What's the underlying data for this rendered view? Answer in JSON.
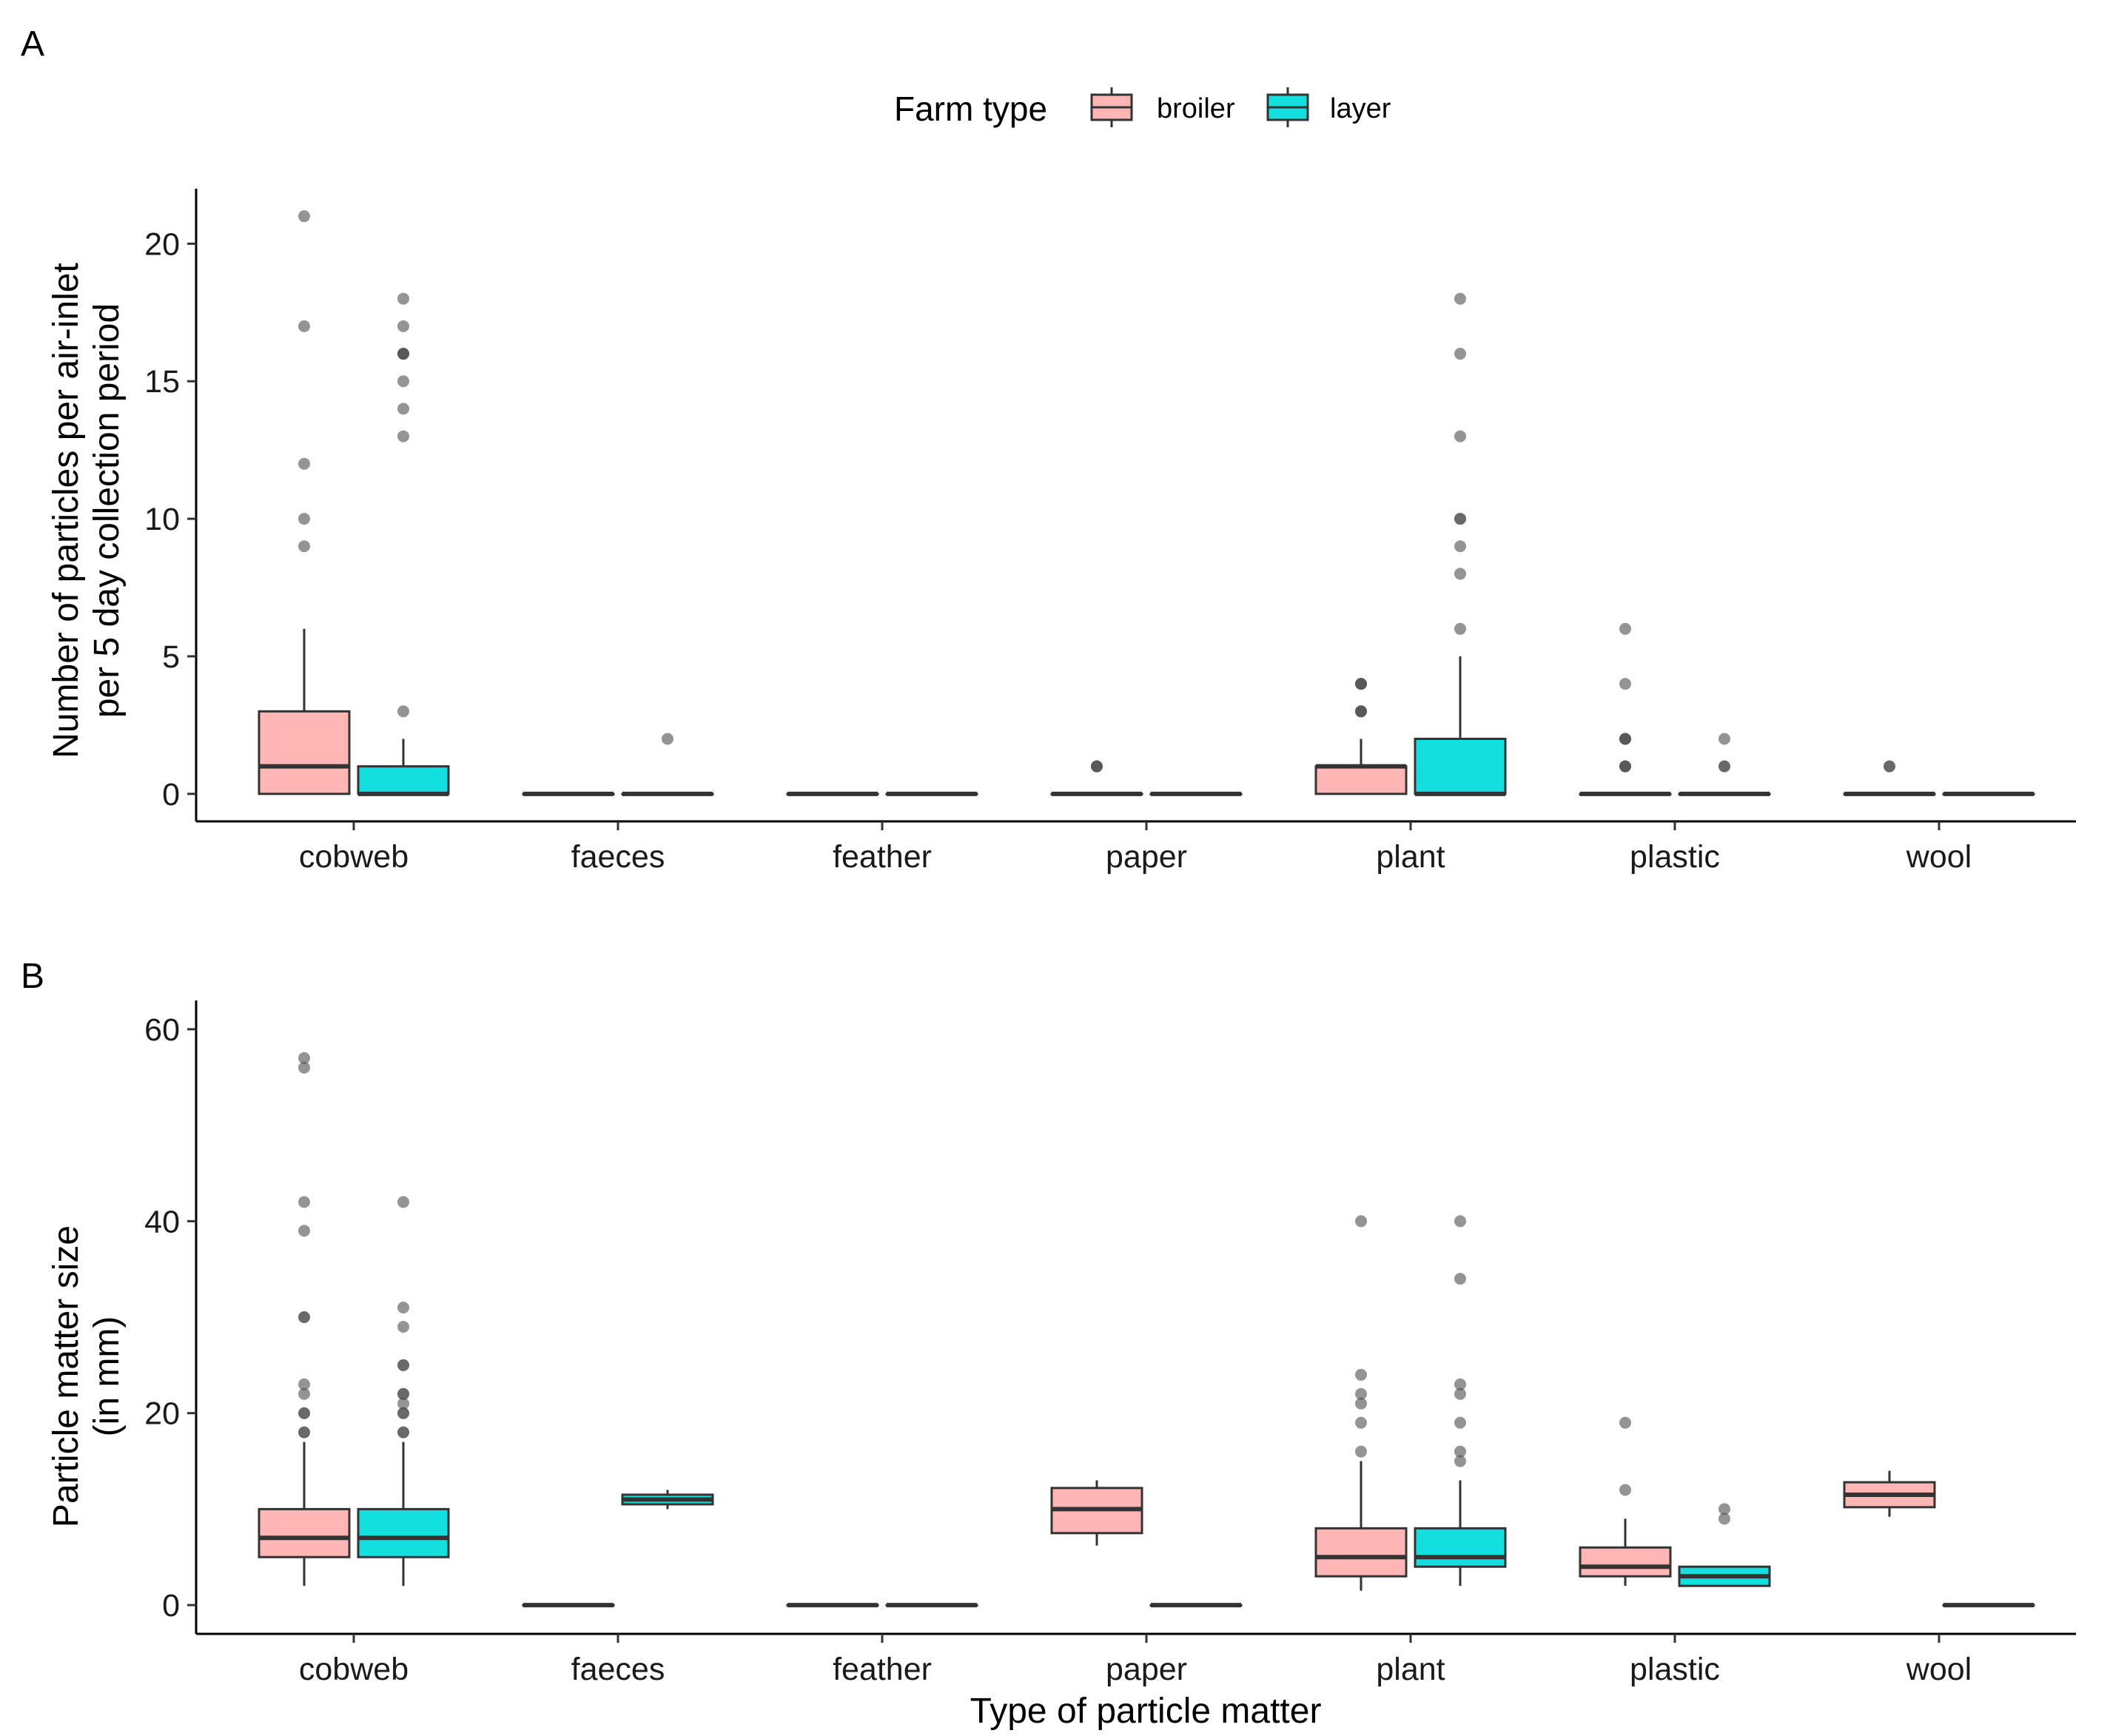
{
  "legend": {
    "title": "Farm type",
    "entries": [
      {
        "name": "broiler",
        "color": "#FFB6B4"
      },
      {
        "name": "layer",
        "color": "#14DFDF"
      }
    ]
  },
  "style": {
    "box_stroke": "#333333",
    "axis_color": "#000000",
    "outlier_color": "#4d4d4d"
  },
  "chart_data": [
    {
      "panel": "A",
      "type": "boxplot",
      "xlabel": "",
      "ylabel_lines": [
        "Number of particles per air-inlet",
        "per 5 day collection period"
      ],
      "ylim": [
        -1,
        22
      ],
      "yticks": [
        0,
        5,
        10,
        15,
        20
      ],
      "categories": [
        "cobweb",
        "faeces",
        "feather",
        "paper",
        "plant",
        "plastic",
        "wool"
      ],
      "series": [
        {
          "name": "broiler",
          "boxes": [
            {
              "q1": 0,
              "median": 1,
              "q3": 3,
              "whisker_low": 0,
              "whisker_high": 6,
              "outliers": [
                9,
                10,
                12,
                17,
                21
              ]
            },
            {
              "q1": 0,
              "median": 0,
              "q3": 0,
              "whisker_low": 0,
              "whisker_high": 0,
              "outliers": []
            },
            {
              "q1": 0,
              "median": 0,
              "q3": 0,
              "whisker_low": 0,
              "whisker_high": 0,
              "outliers": []
            },
            {
              "q1": 0,
              "median": 0,
              "q3": 0,
              "whisker_low": 0,
              "whisker_high": 0,
              "outliers": [
                1,
                1,
                1
              ]
            },
            {
              "q1": 0,
              "median": 1,
              "q3": 1,
              "whisker_low": 0,
              "whisker_high": 2,
              "outliers": [
                3,
                3,
                3,
                4,
                4,
                4
              ]
            },
            {
              "q1": 0,
              "median": 0,
              "q3": 0,
              "whisker_low": 0,
              "whisker_high": 0,
              "outliers": [
                1,
                1,
                1,
                2,
                2,
                2,
                4,
                6
              ]
            },
            {
              "q1": 0,
              "median": 0,
              "q3": 0,
              "whisker_low": 0,
              "whisker_high": 0,
              "outliers": [
                1,
                1
              ]
            }
          ]
        },
        {
          "name": "layer",
          "boxes": [
            {
              "q1": 0,
              "median": 0,
              "q3": 1,
              "whisker_low": 0,
              "whisker_high": 2,
              "outliers": [
                3,
                13,
                14,
                15,
                16,
                16,
                16,
                17,
                18
              ]
            },
            {
              "q1": 0,
              "median": 0,
              "q3": 0,
              "whisker_low": 0,
              "whisker_high": 0,
              "outliers": [
                2
              ]
            },
            {
              "q1": 0,
              "median": 0,
              "q3": 0,
              "whisker_low": 0,
              "whisker_high": 0,
              "outliers": []
            },
            {
              "q1": 0,
              "median": 0,
              "q3": 0,
              "whisker_low": 0,
              "whisker_high": 0,
              "outliers": []
            },
            {
              "q1": 0,
              "median": 0,
              "q3": 2,
              "whisker_low": 0,
              "whisker_high": 5,
              "outliers": [
                6,
                8,
                9,
                10,
                10,
                13,
                16,
                18
              ]
            },
            {
              "q1": 0,
              "median": 0,
              "q3": 0,
              "whisker_low": 0,
              "whisker_high": 0,
              "outliers": [
                1,
                1,
                2
              ]
            },
            {
              "q1": 0,
              "median": 0,
              "q3": 0,
              "whisker_low": 0,
              "whisker_high": 0,
              "outliers": []
            }
          ]
        }
      ]
    },
    {
      "panel": "B",
      "type": "boxplot",
      "xlabel": "Type of particle matter",
      "ylabel_lines": [
        "Particle matter size",
        "(in mm)"
      ],
      "ylim": [
        -3,
        63
      ],
      "yticks": [
        0,
        20,
        40,
        60
      ],
      "categories": [
        "cobweb",
        "faeces",
        "feather",
        "paper",
        "plant",
        "plastic",
        "wool"
      ],
      "series": [
        {
          "name": "broiler",
          "boxes": [
            {
              "q1": 5,
              "median": 7,
              "q3": 10,
              "whisker_low": 2,
              "whisker_high": 17,
              "outliers": [
                18,
                18,
                20,
                20,
                22,
                23,
                30,
                30,
                39,
                42,
                56,
                57
              ]
            },
            {
              "q1": 0,
              "median": 0,
              "q3": 0,
              "whisker_low": 0,
              "whisker_high": 0,
              "outliers": []
            },
            {
              "q1": 0,
              "median": 0,
              "q3": 0,
              "whisker_low": 0,
              "whisker_high": 0,
              "outliers": []
            },
            {
              "q1": 7.5,
              "median": 10,
              "q3": 12.2,
              "whisker_low": 6.2,
              "whisker_high": 13,
              "outliers": []
            },
            {
              "q1": 3,
              "median": 5,
              "q3": 8,
              "whisker_low": 1.5,
              "whisker_high": 15,
              "outliers": [
                16,
                19,
                21,
                22,
                24,
                40
              ]
            },
            {
              "q1": 3,
              "median": 4,
              "q3": 6,
              "whisker_low": 2,
              "whisker_high": 9,
              "outliers": [
                12,
                19
              ]
            },
            {
              "q1": 10.2,
              "median": 11.5,
              "q3": 12.8,
              "whisker_low": 9.2,
              "whisker_high": 14,
              "outliers": []
            }
          ]
        },
        {
          "name": "layer",
          "boxes": [
            {
              "q1": 5,
              "median": 7,
              "q3": 10,
              "whisker_low": 2,
              "whisker_high": 17,
              "outliers": [
                18,
                18,
                20,
                20,
                21,
                22,
                22,
                25,
                25,
                29,
                31,
                42
              ]
            },
            {
              "q1": 10.5,
              "median": 11,
              "q3": 11.5,
              "whisker_low": 10,
              "whisker_high": 12,
              "outliers": []
            },
            {
              "q1": 0,
              "median": 0,
              "q3": 0,
              "whisker_low": 0,
              "whisker_high": 0,
              "outliers": []
            },
            {
              "q1": 0,
              "median": 0,
              "q3": 0,
              "whisker_low": 0,
              "whisker_high": 0,
              "outliers": []
            },
            {
              "q1": 4,
              "median": 5,
              "q3": 8,
              "whisker_low": 2,
              "whisker_high": 13,
              "outliers": [
                15,
                16,
                19,
                22,
                23,
                34,
                40
              ]
            },
            {
              "q1": 2,
              "median": 3,
              "q3": 4,
              "whisker_low": 2,
              "whisker_high": 4,
              "outliers": [
                9,
                10
              ]
            },
            {
              "q1": 0,
              "median": 0,
              "q3": 0,
              "whisker_low": 0,
              "whisker_high": 0,
              "outliers": []
            }
          ]
        }
      ]
    }
  ]
}
